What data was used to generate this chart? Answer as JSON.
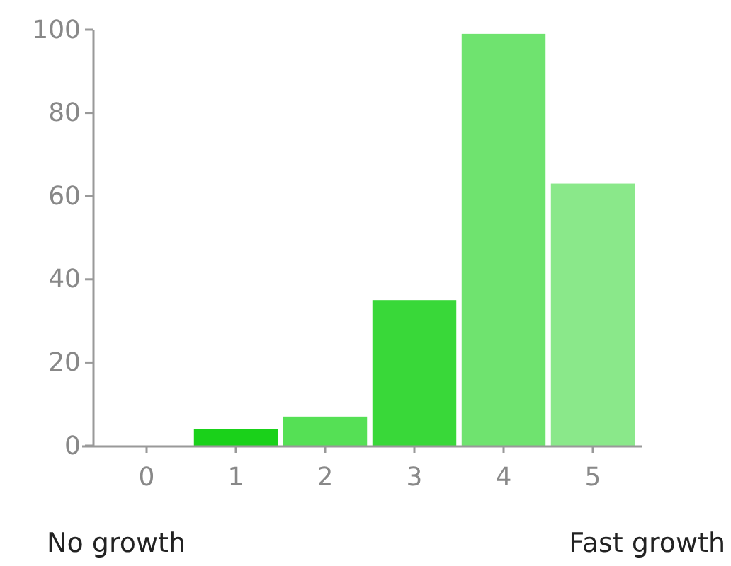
{
  "chart_data": {
    "type": "bar",
    "categories": [
      "0",
      "1",
      "2",
      "3",
      "4",
      "5"
    ],
    "values": [
      0,
      4,
      7,
      35,
      99,
      63
    ],
    "colors": [
      "#33cc33",
      "#1ad11a",
      "#55e055",
      "#39d839",
      "#6fe36f",
      "#8ae88a"
    ],
    "ylim": [
      0,
      100
    ],
    "yticks": [
      0,
      20,
      40,
      60,
      80,
      100
    ],
    "grid": false,
    "annotations": [
      "No growth",
      "Fast growth"
    ]
  }
}
